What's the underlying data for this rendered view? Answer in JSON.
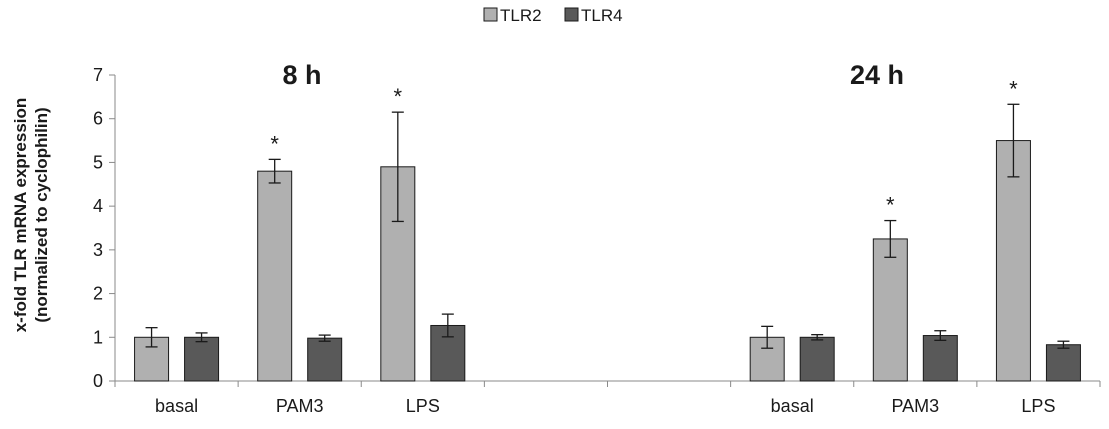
{
  "chart_data": {
    "type": "bar",
    "title": "",
    "xlabel": "",
    "ylabel_line1": "x-fold TLR mRNA expression",
    "ylabel_line2": "(normalized to cyclophilin)",
    "ylim": [
      0,
      7
    ],
    "yticks": [
      0,
      1,
      2,
      3,
      4,
      5,
      6,
      7
    ],
    "grid": false,
    "legend_position": "top-center",
    "groups": [
      {
        "label": "8 h",
        "categories": [
          "basal",
          "PAM3",
          "LPS"
        ]
      },
      {
        "label": "24 h",
        "categories": [
          "basal",
          "PAM3",
          "LPS"
        ]
      }
    ],
    "categories": [
      "basal",
      "PAM3",
      "LPS",
      "basal",
      "PAM3",
      "LPS"
    ],
    "series": [
      {
        "name": "TLR2",
        "color": "#b0b0b0",
        "values": [
          1.0,
          4.8,
          4.9,
          1.0,
          3.25,
          5.5
        ],
        "errors": [
          0.22,
          0.27,
          1.25,
          0.25,
          0.42,
          0.83
        ],
        "significant": [
          false,
          true,
          true,
          false,
          true,
          true
        ]
      },
      {
        "name": "TLR4",
        "color": "#595959",
        "values": [
          1.0,
          0.98,
          1.27,
          1.0,
          1.04,
          0.83
        ],
        "errors": [
          0.1,
          0.07,
          0.26,
          0.06,
          0.11,
          0.08
        ],
        "significant": [
          false,
          false,
          false,
          false,
          false,
          false
        ]
      }
    ],
    "significance_marker": "*"
  }
}
